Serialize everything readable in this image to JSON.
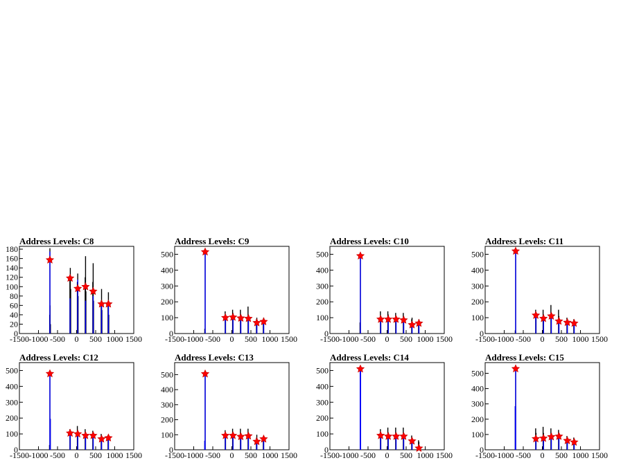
{
  "chart_data": [
    {
      "type": "bar",
      "title": "Address Levels: C8",
      "xlim": [
        -1500,
        1500
      ],
      "ylim": [
        0,
        186
      ],
      "xticks": [
        -1500,
        -1000,
        -500,
        0,
        500,
        1000,
        1500
      ],
      "xtick_labels": [
        "-1500",
        "-1000",
        "-500",
        "0",
        "500",
        "1000",
        "1500"
      ],
      "yticks": [
        0,
        20,
        40,
        60,
        80,
        100,
        120,
        140,
        160,
        180
      ],
      "ytick_labels": [
        "0",
        "20",
        "40",
        "60",
        "80",
        "100",
        "120",
        "140",
        "160",
        "180"
      ],
      "series": [
        {
          "x": [
            -706,
            -696,
            -686
          ],
          "values": [
            40,
            60,
            20
          ],
          "color": "#000000"
        },
        {
          "x": [
            -700,
            -175,
            -165,
            -155,
            20,
            30,
            40,
            225,
            235,
            245,
            425,
            435,
            445,
            645,
            655,
            665,
            825,
            835,
            845
          ],
          "values": [
            182,
            120,
            140,
            95,
            110,
            128,
            80,
            120,
            165,
            90,
            110,
            150,
            70,
            70,
            95,
            50,
            60,
            88,
            40
          ],
          "color": "#000000"
        },
        {
          "x": [
            -700,
            -170,
            30,
            235,
            435,
            655,
            835
          ],
          "values": [
            175,
            75,
            115,
            70,
            80,
            63,
            63
          ],
          "color": "#0000ff"
        }
      ],
      "peaks": {
        "x": [
          -700,
          -170,
          30,
          235,
          435,
          655,
          835
        ],
        "y": [
          157,
          118,
          96,
          100,
          90,
          63,
          63
        ],
        "color": "#ff0000"
      }
    },
    {
      "type": "bar",
      "title": "Address Levels: C9",
      "xlim": [
        -1500,
        1500
      ],
      "ylim": [
        0,
        550
      ],
      "xticks": [
        -1500,
        -1000,
        -500,
        0,
        500,
        1000,
        1500
      ],
      "xtick_labels": [
        "-1500",
        "-1000",
        "-500",
        "0",
        "500",
        "1000",
        "1500"
      ],
      "yticks": [
        0,
        100,
        200,
        300,
        400,
        500
      ],
      "ytick_labels": [
        "0",
        "100",
        "200",
        "300",
        "400",
        "500"
      ],
      "series": [
        {
          "x": [
            -710,
            -700,
            -175,
            -165,
            20,
            30,
            225,
            235,
            425,
            435,
            645,
            655,
            825,
            835
          ],
          "values": [
            30,
            525,
            140,
            120,
            150,
            130,
            150,
            120,
            170,
            120,
            90,
            100,
            90,
            100
          ],
          "color": "#000000"
        },
        {
          "x": [
            -700,
            -170,
            30,
            235,
            435,
            655,
            835
          ],
          "values": [
            520,
            95,
            95,
            90,
            95,
            70,
            75
          ],
          "color": "#0000ff"
        }
      ],
      "peaks": {
        "x": [
          -700,
          -170,
          30,
          235,
          435,
          655,
          835
        ],
        "y": [
          515,
          100,
          103,
          97,
          95,
          68,
          75
        ],
        "color": "#ff0000"
      }
    },
    {
      "type": "bar",
      "title": "Address Levels: C10",
      "xlim": [
        -1500,
        1500
      ],
      "ylim": [
        0,
        550
      ],
      "xticks": [
        -1500,
        -1000,
        -500,
        0,
        500,
        1000,
        1500
      ],
      "xtick_labels": [
        "-1500",
        "-1000",
        "-500",
        "0",
        "500",
        "1000",
        "1500"
      ],
      "yticks": [
        0,
        100,
        200,
        300,
        400,
        500
      ],
      "ytick_labels": [
        "0",
        "100",
        "200",
        "300",
        "400",
        "500"
      ],
      "series": [
        {
          "x": [
            -710,
            -700,
            -175,
            -165,
            20,
            30,
            225,
            235,
            425,
            435,
            645,
            655,
            825,
            835
          ],
          "values": [
            70,
            500,
            140,
            110,
            140,
            120,
            130,
            110,
            130,
            110,
            90,
            100,
            80,
            90
          ],
          "color": "#000000"
        },
        {
          "x": [
            -700,
            -170,
            30,
            235,
            435,
            655,
            835
          ],
          "values": [
            495,
            90,
            90,
            85,
            85,
            55,
            65
          ],
          "color": "#0000ff"
        }
      ],
      "peaks": {
        "x": [
          -700,
          -170,
          30,
          235,
          435,
          655,
          835
        ],
        "y": [
          490,
          90,
          90,
          90,
          85,
          55,
          65
        ],
        "color": "#ff0000"
      }
    },
    {
      "type": "bar",
      "title": "Address Levels: C11",
      "xlim": [
        -1500,
        1500
      ],
      "ylim": [
        0,
        550
      ],
      "xticks": [
        -1500,
        -1000,
        -500,
        0,
        500,
        1000,
        1500
      ],
      "xtick_labels": [
        "-1500",
        "-1000",
        "-500",
        "0",
        "500",
        "1000",
        "1500"
      ],
      "yticks": [
        0,
        100,
        200,
        300,
        400,
        500
      ],
      "ytick_labels": [
        "0",
        "100",
        "200",
        "300",
        "400",
        "500"
      ],
      "series": [
        {
          "x": [
            -710,
            -700,
            -175,
            -165,
            20,
            30,
            225,
            235,
            425,
            435,
            645,
            655,
            825,
            835
          ],
          "values": [
            20,
            535,
            150,
            130,
            150,
            120,
            180,
            130,
            150,
            110,
            100,
            80,
            90,
            80
          ],
          "color": "#000000"
        },
        {
          "x": [
            -700,
            -170,
            30,
            235,
            435,
            655,
            835
          ],
          "values": [
            530,
            115,
            90,
            110,
            75,
            70,
            65
          ],
          "color": "#0000ff"
        }
      ],
      "peaks": {
        "x": [
          -700,
          -170,
          30,
          235,
          435,
          655,
          835
        ],
        "y": [
          520,
          115,
          95,
          110,
          78,
          70,
          65
        ],
        "color": "#ff0000"
      }
    },
    {
      "type": "bar",
      "title": "Address Levels: C12",
      "xlim": [
        -1500,
        1500
      ],
      "ylim": [
        0,
        550
      ],
      "xticks": [
        -1500,
        -1000,
        -500,
        0,
        500,
        1000,
        1500
      ],
      "xtick_labels": [
        "-1500",
        "-1000",
        "-500",
        "0",
        "500",
        "1000",
        "1500"
      ],
      "yticks": [
        0,
        100,
        200,
        300,
        400,
        500
      ],
      "ytick_labels": [
        "0",
        "100",
        "200",
        "300",
        "400",
        "500"
      ],
      "series": [
        {
          "x": [
            -710,
            -700,
            -690,
            -175,
            -165,
            20,
            30,
            225,
            235,
            425,
            435,
            645,
            655,
            825,
            835
          ],
          "values": [
            30,
            495,
            195,
            130,
            110,
            150,
            120,
            130,
            110,
            120,
            100,
            100,
            80,
            90,
            80
          ],
          "color": "#000000"
        },
        {
          "x": [
            -700,
            -690,
            -170,
            30,
            235,
            435,
            655,
            835
          ],
          "values": [
            490,
            195,
            100,
            95,
            85,
            90,
            65,
            75
          ],
          "color": "#0000ff"
        }
      ],
      "peaks": {
        "x": [
          -700,
          -170,
          30,
          235,
          435,
          655,
          835
        ],
        "y": [
          480,
          105,
          100,
          90,
          90,
          68,
          75
        ],
        "color": "#ff0000"
      }
    },
    {
      "type": "bar",
      "title": "Address Levels: C13",
      "xlim": [
        -1500,
        1500
      ],
      "ylim": [
        0,
        580
      ],
      "xticks": [
        -1500,
        -1000,
        -500,
        0,
        500,
        1000,
        1500
      ],
      "xtick_labels": [
        "-1500",
        "-1000",
        "-500",
        "0",
        "500",
        "1000",
        "1500"
      ],
      "yticks": [
        0,
        100,
        200,
        300,
        400,
        500
      ],
      "ytick_labels": [
        "0",
        "100",
        "200",
        "300",
        "400",
        "500"
      ],
      "series": [
        {
          "x": [
            -710,
            -700,
            -175,
            -165,
            20,
            30,
            225,
            235,
            425,
            435,
            645,
            655,
            825,
            835
          ],
          "values": [
            60,
            525,
            130,
            110,
            140,
            110,
            140,
            110,
            140,
            110,
            80,
            100,
            80,
            90
          ],
          "color": "#000000"
        },
        {
          "x": [
            -710,
            -700,
            -170,
            30,
            235,
            435,
            655,
            835
          ],
          "values": [
            60,
            520,
            95,
            90,
            90,
            90,
            55,
            70
          ],
          "color": "#0000ff"
        }
      ],
      "peaks": {
        "x": [
          -700,
          -170,
          30,
          235,
          435,
          655,
          835
        ],
        "y": [
          505,
          95,
          95,
          88,
          92,
          55,
          72
        ],
        "color": "#ff0000"
      }
    },
    {
      "type": "bar",
      "title": "Address Levels: C14",
      "xlim": [
        -1500,
        1500
      ],
      "ylim": [
        0,
        550
      ],
      "xticks": [
        -1500,
        -1000,
        -500,
        0,
        500,
        1000,
        1500
      ],
      "xtick_labels": [
        "-1500",
        "-1000",
        "-500",
        "0",
        "500",
        "1000",
        "1500"
      ],
      "yticks": [
        0,
        100,
        200,
        300,
        400,
        500
      ],
      "ytick_labels": [
        "0",
        "100",
        "200",
        "300",
        "400",
        "500"
      ],
      "series": [
        {
          "x": [
            -705,
            -695,
            -175,
            -165,
            20,
            30,
            225,
            235,
            425,
            435,
            645,
            655,
            825,
            835
          ],
          "values": [
            525,
            510,
            130,
            110,
            140,
            110,
            140,
            110,
            140,
            100,
            90,
            70,
            60,
            50
          ],
          "color": "#000000"
        },
        {
          "x": [
            -705,
            -695,
            -170,
            30,
            235,
            435,
            655,
            835
          ],
          "values": [
            520,
            505,
            95,
            85,
            85,
            85,
            50,
            15
          ],
          "color": "#0000ff"
        }
      ],
      "peaks": {
        "x": [
          -700,
          -170,
          30,
          235,
          435,
          655,
          835
        ],
        "y": [
          510,
          90,
          85,
          85,
          85,
          55,
          10
        ],
        "color": "#ff0000"
      }
    },
    {
      "type": "bar",
      "title": "Address Levels: C15",
      "xlim": [
        -1500,
        1500
      ],
      "ylim": [
        0,
        570
      ],
      "xticks": [
        -1500,
        -1000,
        -500,
        0,
        500,
        1000,
        1500
      ],
      "xtick_labels": [
        "-1500",
        "-1000",
        "-500",
        "0",
        "500",
        "1000",
        "1500"
      ],
      "yticks": [
        0,
        100,
        200,
        300,
        400,
        500
      ],
      "ytick_labels": [
        "0",
        "100",
        "200",
        "300",
        "400",
        "500"
      ],
      "series": [
        {
          "x": [
            -710,
            -700,
            -175,
            -165,
            20,
            30,
            225,
            235,
            425,
            435,
            645,
            655,
            825,
            835
          ],
          "values": [
            285,
            545,
            140,
            110,
            150,
            110,
            140,
            110,
            130,
            100,
            90,
            80,
            80,
            60
          ],
          "color": "#000000"
        },
        {
          "x": [
            -710,
            -700,
            -170,
            30,
            235,
            435,
            655,
            835
          ],
          "values": [
            285,
            540,
            80,
            80,
            80,
            85,
            55,
            45
          ],
          "color": "#0000ff"
        }
      ],
      "peaks": {
        "x": [
          -700,
          -170,
          30,
          235,
          435,
          655,
          835
        ],
        "y": [
          530,
          72,
          75,
          85,
          88,
          60,
          50
        ],
        "color": "#ff0000"
      }
    }
  ]
}
